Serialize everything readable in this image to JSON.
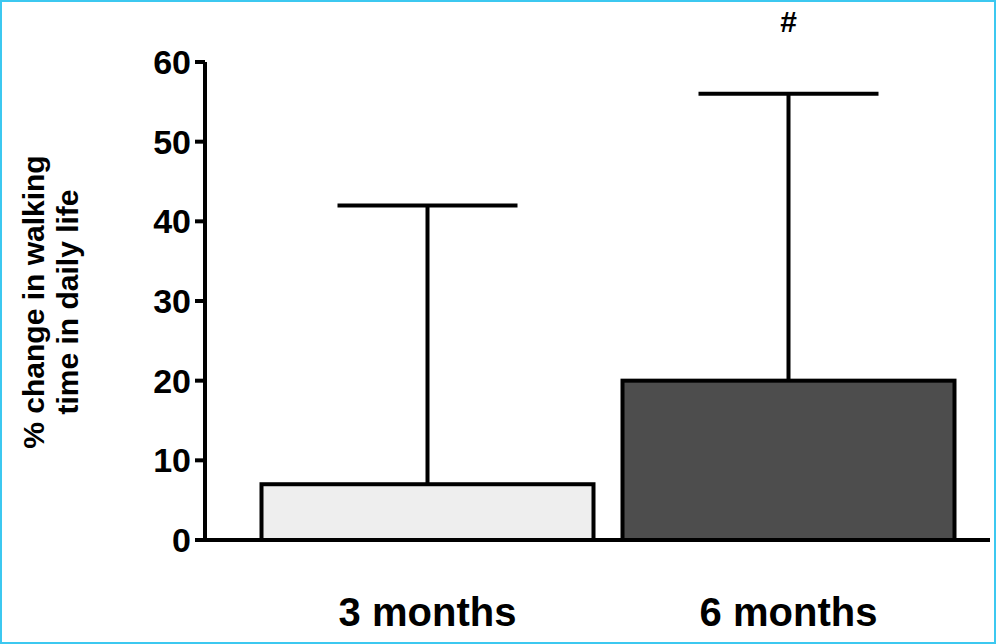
{
  "chart_data": {
    "type": "bar",
    "y_label": [
      "% change in walking",
      "time in daily life"
    ],
    "categories": [
      "3 months",
      "6 months"
    ],
    "values": [
      7,
      20
    ],
    "errors": [
      35,
      36
    ],
    "colors": [
      "#eeeeee",
      "#4d4d4d"
    ],
    "ylim": [
      0,
      60
    ],
    "yticks": [
      0,
      10,
      20,
      30,
      40,
      50,
      60
    ],
    "grid": false,
    "annotations": [
      {
        "category": "6 months",
        "text": "#"
      }
    ]
  }
}
